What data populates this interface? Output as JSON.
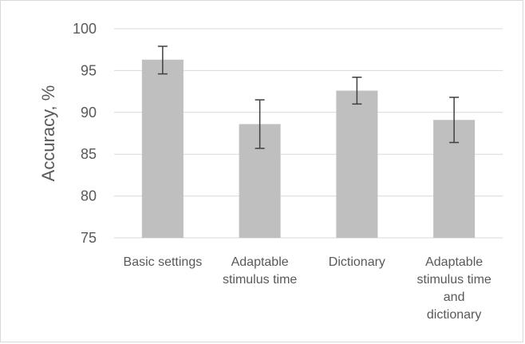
{
  "chart_data": {
    "type": "bar",
    "title": "",
    "xlabel": "",
    "ylabel": "Accuracy, %",
    "ylim": [
      75,
      100
    ],
    "yticks": [
      75,
      80,
      85,
      90,
      95,
      100
    ],
    "grid": true,
    "legend": "none",
    "categories": [
      [
        "Basic settings"
      ],
      [
        "Adaptable",
        "stimulus time"
      ],
      [
        "Dictionary"
      ],
      [
        "Adaptable",
        "stimulus time",
        "and",
        "dictionary"
      ]
    ],
    "values": [
      96.3,
      88.6,
      92.6,
      89.1
    ],
    "error_low": [
      94.6,
      85.7,
      91.0,
      86.4
    ],
    "error_high": [
      97.9,
      91.5,
      94.2,
      91.8
    ],
    "colors": {
      "bar": "#bfbfbf",
      "gridline": "#d9d9d9",
      "error_bar": "#404040",
      "text": "#595959"
    }
  }
}
